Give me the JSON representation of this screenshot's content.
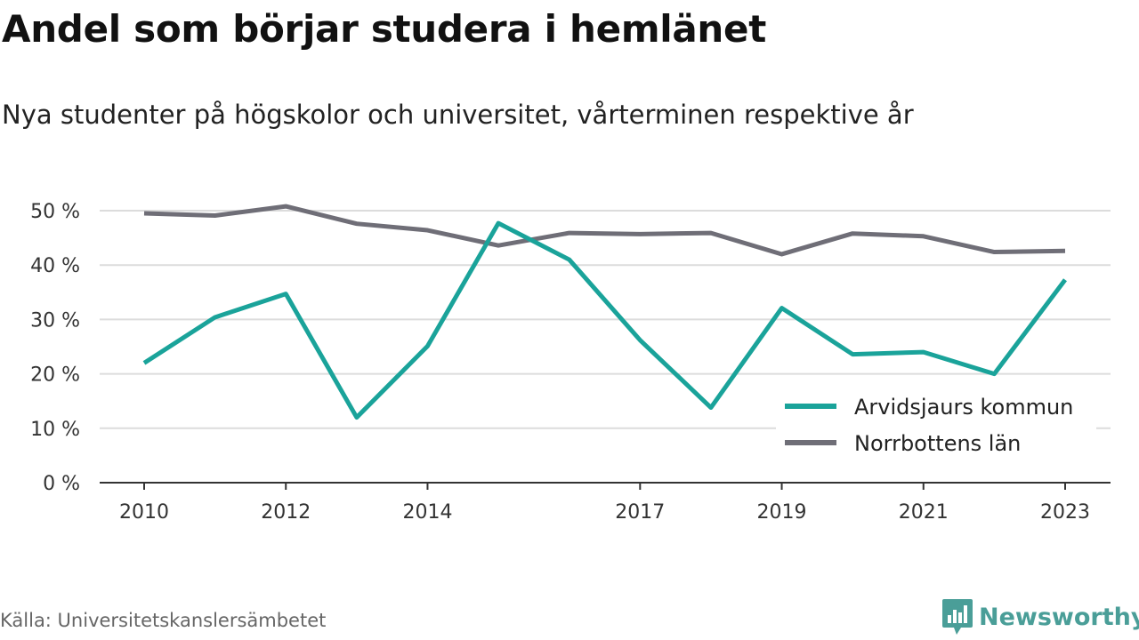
{
  "title": "Andel som börjar studera i hemlänet",
  "subtitle": "Nya studenter på högskolor och universitet, vårterminen respektive år",
  "source": "Källa: Universitetskanslersämbetet",
  "brand": {
    "name": "Newsworthy",
    "color": "#4a9e98",
    "icon": "bar-chart-speech-bubble-icon"
  },
  "chart_data": {
    "type": "line",
    "x": [
      2010,
      2011,
      2012,
      2013,
      2014,
      2015,
      2016,
      2017,
      2018,
      2019,
      2020,
      2021,
      2022,
      2023
    ],
    "x_tick_values": [
      2010,
      2012,
      2014,
      2017,
      2019,
      2021,
      2023
    ],
    "x_tick_labels": [
      "2010",
      "2012",
      "2014",
      "2017",
      "2019",
      "2021",
      "2023"
    ],
    "y_tick_values": [
      0,
      10,
      20,
      30,
      40,
      50
    ],
    "y_tick_labels": [
      "0 %",
      "10 %",
      "20 %",
      "30 %",
      "40 %",
      "50 %"
    ],
    "ylim": [
      0,
      50
    ],
    "xlim": [
      2010,
      2023
    ],
    "grid": true,
    "legend_position": "bottom-right",
    "series": [
      {
        "name": "Arvidsjaurs kommun",
        "color": "#1aa39a",
        "values": [
          22.0,
          30.4,
          34.7,
          12.0,
          25.1,
          47.7,
          41.0,
          26.2,
          13.8,
          32.1,
          23.6,
          24.0,
          20.0,
          37.3
        ]
      },
      {
        "name": "Norrbottens län",
        "color": "#6f6e77",
        "values": [
          49.5,
          49.1,
          50.8,
          47.6,
          46.4,
          43.6,
          45.9,
          45.7,
          45.9,
          42.0,
          45.8,
          45.3,
          42.4,
          42.6
        ]
      }
    ]
  }
}
